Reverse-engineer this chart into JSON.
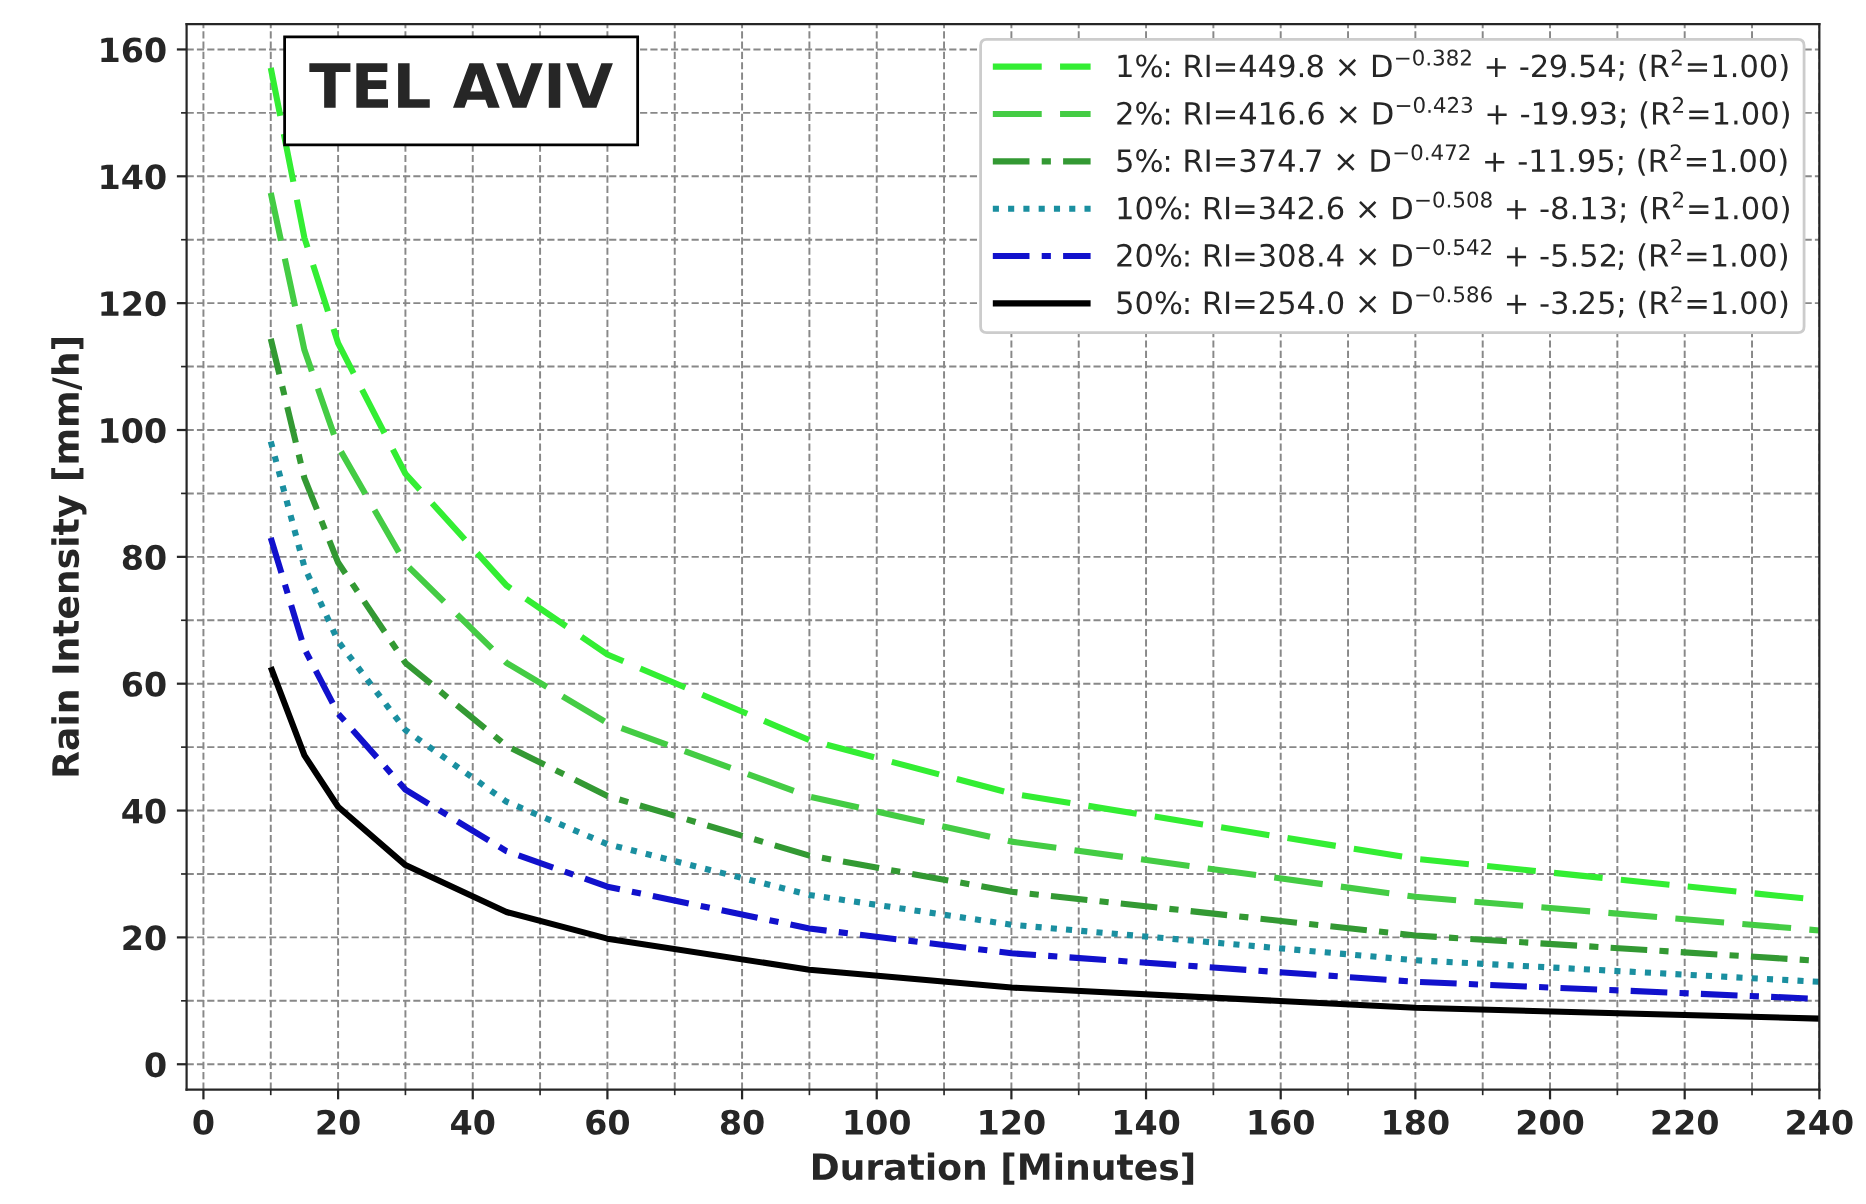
{
  "chart_data": {
    "type": "line",
    "title": "TEL AVIV",
    "xlabel": "Duration [Minutes]",
    "ylabel": "Rain Intensity [mm/h]",
    "x": [
      10,
      15,
      20,
      30,
      45,
      60,
      90,
      120,
      180,
      240
    ],
    "xlim": [
      -2.5,
      240
    ],
    "xticks": [
      0,
      20,
      40,
      60,
      80,
      100,
      120,
      140,
      160,
      180,
      200,
      220,
      240
    ],
    "ylim": [
      -4,
      164
    ],
    "yticks": [
      0,
      20,
      40,
      60,
      80,
      100,
      120,
      140,
      160
    ],
    "grid": true,
    "legend": "top right",
    "marker": "none",
    "series": [
      {
        "name": "1%: RI=449.8 × D$^{−0.382}$ + -29.54; (R$^{2}$=1.00)",
        "color": "#33ee33",
        "line_style": "dashed",
        "values": [
          157.1,
          130.3,
          113.7,
          93.1,
          75.5,
          64.6,
          51.1,
          42.7,
          32.4,
          25.9
        ]
      },
      {
        "name": "2%: RI=416.6 × D$^{−0.423}$ + -19.93; (R$^{2}$=1.00)",
        "color": "#44cc44",
        "line_style": "dashed",
        "values": [
          137.4,
          112.6,
          97.4,
          78.9,
          63.3,
          53.8,
          42.2,
          35.1,
          26.4,
          21.1
        ]
      },
      {
        "name": "5%: RI=374.7 × D$^{−0.472}$ + -11.95; (R$^{2}$=1.00)",
        "color": "#339933",
        "line_style": "dashdot",
        "values": [
          114.4,
          92.4,
          79.1,
          63.3,
          50.2,
          42.3,
          32.9,
          27.2,
          20.3,
          16.3
        ]
      },
      {
        "name": "10%: RI=342.6 × D$^{−0.508}$ + -8.13; (R$^{2}$=1.00)",
        "color": "#1a8fa0",
        "line_style": "dotted",
        "values": [
          98.2,
          78.4,
          66.7,
          52.7,
          41.4,
          34.7,
          26.7,
          22.0,
          16.4,
          13.0
        ]
      },
      {
        "name": "20%: RI=308.4 × D$^{−0.542}$ + -5.52; (R$^{2}$=1.00)",
        "color": "#1111cc",
        "line_style": "dashdot",
        "values": [
          83.0,
          65.5,
          55.3,
          43.3,
          33.6,
          28.0,
          21.4,
          17.5,
          13.0,
          10.3
        ]
      },
      {
        "name": "50%: RI=254.0 × D$^{−0.586}$ + -3.25; (R$^{2}$=1.00)",
        "color": "#000000",
        "line_style": "solid",
        "values": [
          62.6,
          48.7,
          40.6,
          31.4,
          24.0,
          19.8,
          14.9,
          12.1,
          8.9,
          7.2
        ]
      }
    ]
  }
}
